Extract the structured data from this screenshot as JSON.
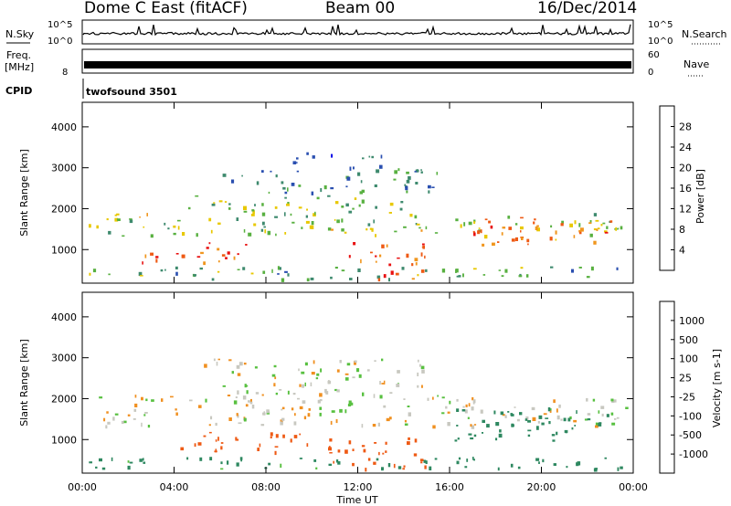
{
  "header": {
    "title": "Dome C East (fitACF)",
    "beam": "Beam 00",
    "date": "16/Dec/2014"
  },
  "top_panels": {
    "nsky_label": "N.Sky",
    "nsky_ticks": [
      "10^5",
      "10^0"
    ],
    "nsearch_label": "N.Search",
    "nsearch_ticks": [
      "10^5",
      "10^0"
    ],
    "freq_label_line1": "Freq.",
    "freq_label_line2": "[MHz]",
    "freq_tick": "8",
    "nave_label": "Nave",
    "nave_ticks": [
      "60",
      "0"
    ],
    "cpid_label": "CPID",
    "cpid_value": "twofsound 3501"
  },
  "colors": {
    "power_scale": [
      "#1010e8",
      "#2a4fb0",
      "#3e8a6e",
      "#58b040",
      "#e8c800",
      "#f0961e",
      "#ee5a14",
      "#e81010"
    ],
    "velocity_scale": [
      "#e81010",
      "#ee5a14",
      "#f09020",
      "#c8c8c0",
      "#c8c8c0",
      "#58c040",
      "#2e8860",
      "#2a4fb8"
    ]
  },
  "chart_data": [
    {
      "type": "heatmap",
      "name": "power",
      "ylabel": "Slant Range [km]",
      "yticks": [
        1000,
        2000,
        3000,
        4000
      ],
      "ylim": [
        180,
        4600
      ],
      "xlim_hours": [
        0,
        24
      ],
      "colorbar_label": "Power [dB]",
      "colorbar_ticks": [
        "4",
        "8",
        "12",
        "16",
        "20",
        "24",
        "28"
      ],
      "colorbar_range": [
        0,
        32
      ],
      "bands": [
        {
          "t": [
            0.2,
            23.8
          ],
          "r": [
            1350,
            1900
          ],
          "v": 16
        },
        {
          "t": [
            0.2,
            23.8
          ],
          "r": [
            300,
            600
          ],
          "v": 12
        },
        {
          "t": [
            4,
            14
          ],
          "r": [
            1900,
            2350
          ],
          "v": 14
        },
        {
          "t": [
            6,
            15.5
          ],
          "r": [
            2400,
            3000
          ],
          "v": 10
        },
        {
          "t": [
            9,
            13
          ],
          "r": [
            3000,
            3400
          ],
          "v": 8
        },
        {
          "t": [
            2.5,
            7.5
          ],
          "r": [
            700,
            1200
          ],
          "v": 26
        },
        {
          "t": [
            11.5,
            15
          ],
          "r": [
            300,
            1200
          ],
          "v": 27
        },
        {
          "t": [
            17,
            23
          ],
          "r": [
            1100,
            1800
          ],
          "v": 24
        }
      ]
    },
    {
      "type": "heatmap",
      "name": "velocity",
      "ylabel": "Slant Range [km]",
      "yticks": [
        1000,
        2000,
        3000,
        4000
      ],
      "ylim": [
        180,
        4600
      ],
      "xlim_hours": [
        0,
        24
      ],
      "xticks": [
        "00:00",
        "04:00",
        "08:00",
        "12:00",
        "16:00",
        "20:00",
        "00:00"
      ],
      "xlabel": "Time UT",
      "colorbar_label": "Velocity [m s-1]",
      "colorbar_ticks": [
        "-1000",
        "-500",
        "-100",
        "-25",
        "25",
        "100",
        "500",
        "1000"
      ],
      "bands": [
        {
          "t": [
            0.2,
            23.8
          ],
          "r": [
            1350,
            2100
          ],
          "v": 0
        },
        {
          "t": [
            0.2,
            23.8
          ],
          "r": [
            300,
            600
          ],
          "v": 150
        },
        {
          "t": [
            5,
            15
          ],
          "r": [
            2100,
            3000
          ],
          "v": 0
        },
        {
          "t": [
            4,
            10
          ],
          "r": [
            700,
            1200
          ],
          "v": -300
        },
        {
          "t": [
            10.5,
            15
          ],
          "r": [
            300,
            1100
          ],
          "v": -300
        },
        {
          "t": [
            16,
            23
          ],
          "r": [
            1000,
            1800
          ],
          "v": 300
        }
      ]
    }
  ]
}
